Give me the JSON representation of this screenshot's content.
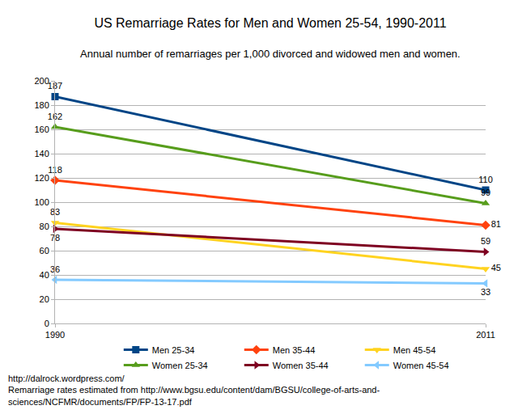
{
  "chart_data": {
    "type": "line",
    "title": "US Remarriage Rates for Men and Women 25-54, 1990-2011",
    "subtitle": "Annual number of remarriages per 1,000 divorced and widowed men and women.",
    "notes": [
      "http://dalrock.wordpress.com/",
      "Remarriage rates estimated from http://www.bgsu.edu/content/dam/BGSU/college-of-arts-and-",
      "sciences/NCFMR/documents/FP/FP-13-17.pdf"
    ],
    "x": [
      1990,
      2011
    ],
    "xlim": [
      1990,
      2011
    ],
    "xticks": [
      1990,
      2011
    ],
    "ylim": [
      0,
      200
    ],
    "yticks": [
      0,
      20,
      40,
      60,
      80,
      100,
      120,
      140,
      160,
      180,
      200
    ],
    "grid": true,
    "legend": "bottom",
    "data_labels": true,
    "series": [
      {
        "name": "Men 25-34",
        "color": "#004586",
        "marker": "square",
        "values": [
          187,
          110
        ]
      },
      {
        "name": "Men 35-44",
        "color": "#ff420e",
        "marker": "diamond",
        "values": [
          118,
          81
        ]
      },
      {
        "name": "Men 45-54",
        "color": "#ffd320",
        "marker": "triangle-down",
        "values": [
          83,
          45
        ]
      },
      {
        "name": "Women 25-34",
        "color": "#579d1c",
        "marker": "triangle-up",
        "values": [
          162,
          99
        ]
      },
      {
        "name": "Women 35-44",
        "color": "#7e0021",
        "marker": "triangle-right",
        "values": [
          78,
          59
        ]
      },
      {
        "name": "Women 45-54",
        "color": "#83caff",
        "marker": "triangle-left",
        "values": [
          36,
          33
        ]
      }
    ]
  }
}
